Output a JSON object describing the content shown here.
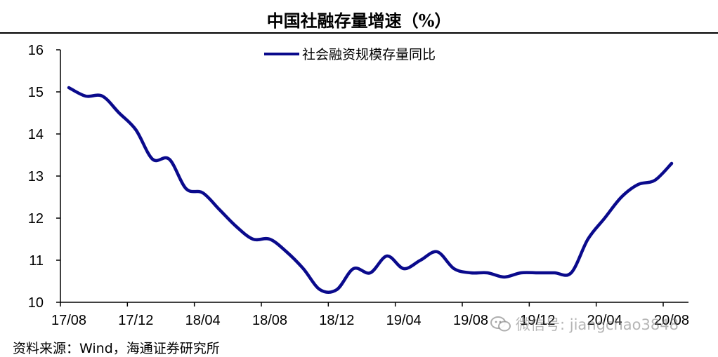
{
  "title": "中国社融存量增速（%）",
  "source": "资料来源：Wind，海通证券研究所",
  "watermark": {
    "text": "微信号: jiangchao3848",
    "icon": "wechat-icon"
  },
  "colors": {
    "series": "#0a0a8c",
    "axis": "#000000",
    "text": "#000000"
  },
  "chart_data": {
    "type": "line",
    "ylim": [
      10,
      16
    ],
    "yticks": [
      "10",
      "11",
      "12",
      "13",
      "14",
      "15",
      "16"
    ],
    "xticks": [
      "17/08",
      "17/12",
      "18/04",
      "18/08",
      "18/12",
      "19/04",
      "19/08",
      "19/12",
      "20/04",
      "20/08"
    ],
    "legend_position": "top-center",
    "grid": false,
    "series": [
      {
        "name": "社会融资规模存量同比",
        "x": [
          "17/08",
          "17/09",
          "17/10",
          "17/11",
          "17/12",
          "18/01",
          "18/02",
          "18/03",
          "18/04",
          "18/05",
          "18/06",
          "18/07",
          "18/08",
          "18/09",
          "18/10",
          "18/11",
          "18/12",
          "19/01",
          "19/02",
          "19/03",
          "19/04",
          "19/05",
          "19/06",
          "19/07",
          "19/08",
          "19/09",
          "19/10",
          "19/11",
          "19/12",
          "20/01",
          "20/02",
          "20/03",
          "20/04",
          "20/05",
          "20/06",
          "20/07",
          "20/08"
        ],
        "values": [
          15.1,
          14.9,
          14.9,
          14.5,
          14.1,
          13.4,
          13.4,
          12.7,
          12.6,
          12.2,
          11.8,
          11.5,
          11.5,
          11.2,
          10.8,
          10.3,
          10.3,
          10.8,
          10.7,
          11.1,
          10.8,
          11.0,
          11.2,
          10.8,
          10.7,
          10.7,
          10.6,
          10.7,
          10.7,
          10.7,
          10.7,
          11.5,
          12.0,
          12.5,
          12.8,
          12.9,
          13.3
        ]
      }
    ]
  }
}
